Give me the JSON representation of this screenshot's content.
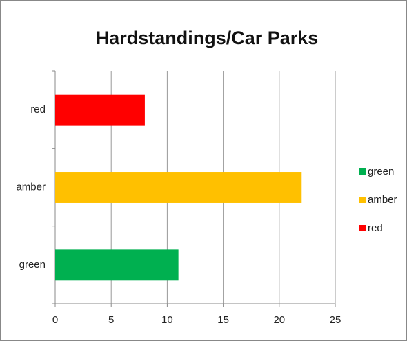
{
  "chart_data": {
    "type": "bar",
    "orientation": "horizontal",
    "title": "Hardstandings/Car Parks",
    "categories": [
      "green",
      "amber",
      "red"
    ],
    "values": [
      11,
      22,
      8
    ],
    "colors": [
      "#00b050",
      "#ffc000",
      "#ff0000"
    ],
    "xlim": [
      0,
      25
    ],
    "xticks": [
      0,
      5,
      10,
      15,
      20,
      25
    ],
    "grid": true,
    "legend": "right"
  }
}
